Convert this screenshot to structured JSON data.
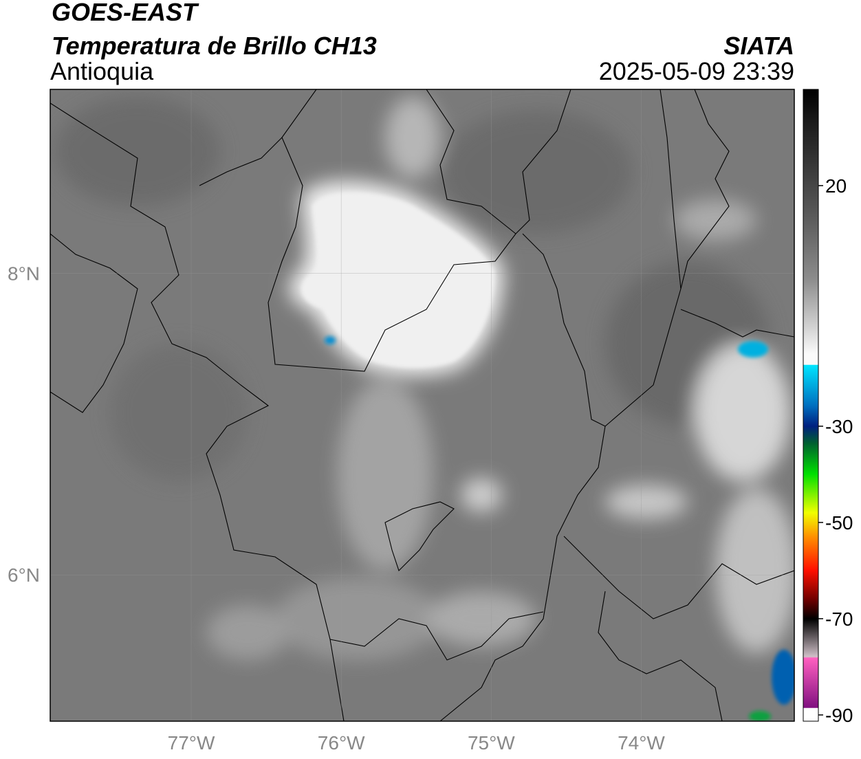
{
  "header": {
    "title": "GOES-EAST",
    "subtitle": "Temperatura de Brillo CH13",
    "region": "Antioquia",
    "source": "SIATA",
    "datetime": "2025-05-09 23:39"
  },
  "map": {
    "xlim": [
      -77.94,
      -72.98
    ],
    "ylim": [
      5.03,
      9.22
    ],
    "xticks": [
      {
        "value": -77,
        "label": "77°W"
      },
      {
        "value": -76,
        "label": "76°W"
      },
      {
        "value": -75,
        "label": "75°W"
      },
      {
        "value": -74,
        "label": "74°W"
      }
    ],
    "yticks": [
      {
        "value": 8,
        "label": "8°N"
      },
      {
        "value": 6,
        "label": "6°N"
      }
    ]
  },
  "colorbar": {
    "lim": [
      -91.3,
      40
    ],
    "ticks": [
      20,
      -30,
      -50,
      -70,
      -90
    ]
  }
}
